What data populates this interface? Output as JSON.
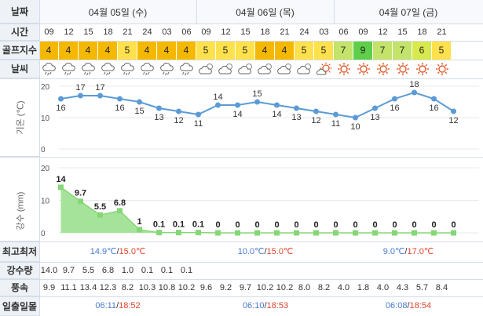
{
  "labels": {
    "date": "날짜",
    "time": "시간",
    "golf_index": "골프지수",
    "weather": "날씨",
    "temp_axis": "기온 (℃)",
    "rain_axis": "강수 (mm)",
    "minmax": "최고최저",
    "precip": "강수량",
    "wind": "풍속",
    "sun": "일출일몰"
  },
  "days": [
    {
      "label": "04월 05일 (수)",
      "min": "14.9℃",
      "max": "15.0℃",
      "sep": "/",
      "sunrise": "06:11",
      "sunset": "18:52"
    },
    {
      "label": "04월 06일 (목)",
      "min": "10.0℃",
      "max": "15.0℃",
      "sep": "/",
      "sunrise": "06:10",
      "sunset": "18:53"
    },
    {
      "label": "04월 07일 (금)",
      "min": "9.0℃",
      "max": "17.0℃",
      "sep": "/",
      "sunrise": "06:08",
      "sunset": "18:54"
    }
  ],
  "hours": [
    "09",
    "12",
    "15",
    "18",
    "21",
    "24",
    "03",
    "06",
    "09",
    "12",
    "15",
    "18",
    "21",
    "24",
    "03",
    "06",
    "09",
    "12",
    "15",
    "18",
    "21"
  ],
  "golf_scores": [
    "4",
    "4",
    "4",
    "4",
    "5",
    "4",
    "4",
    "4",
    "5",
    "5",
    "5",
    "4",
    "4",
    "5",
    "5",
    "7",
    "9",
    "7",
    "7",
    "6",
    "5"
  ],
  "weather_icons": [
    "rain-cloud-icon",
    "rain-cloud-icon",
    "rain-cloud-icon",
    "rain-cloud-icon",
    "rain-cloud-icon",
    "rain-cloud-icon",
    "rain-cloud-icon",
    "rain-cloud-icon",
    "partly-cloudy-icon",
    "partly-cloudy-icon",
    "partly-cloudy-icon",
    "partly-cloudy-icon",
    "partly-cloudy-icon",
    "partly-cloudy-icon",
    "sun-cloud-icon",
    "sun-icon",
    "sun-icon",
    "sun-icon",
    "sun-icon",
    "sun-icon",
    "sun-icon"
  ],
  "precip_row": [
    "14.0",
    "9.7",
    "5.5",
    "6.8",
    "1.0",
    "0.1",
    "0.1",
    "0.1",
    "",
    "",
    "",
    "",
    "",
    "",
    "",
    "",
    "",
    "",
    "",
    "",
    ""
  ],
  "wind_row": [
    "9.9",
    "11.1",
    "13.4",
    "12.3",
    "8.2",
    "10.3",
    "10.8",
    "10.2",
    "9.6",
    "9.2",
    "9.7",
    "10.2",
    "10.2",
    "8.0",
    "8.2",
    "4.0",
    "1.8",
    "4.0",
    "4.3",
    "5.7",
    "8.4"
  ],
  "colors": {
    "score_4": "#f5b800",
    "score_5": "#ffe14d",
    "score_6": "#d8e94d",
    "score_7": "#c4e36a",
    "score_9": "#5fcf4a",
    "temp_line": "#5b9bd5",
    "rain_fill": "#a6e39a",
    "rain_line": "#86d776"
  },
  "chart_data": [
    {
      "type": "line",
      "ylabel": "기온 (℃)",
      "ylim": [
        0,
        20
      ],
      "yticks": [
        "0",
        "10",
        "20"
      ],
      "x": [
        "09",
        "12",
        "15",
        "18",
        "21",
        "24",
        "03",
        "06",
        "09",
        "12",
        "15",
        "18",
        "21",
        "24",
        "03",
        "06",
        "09",
        "12",
        "15",
        "18",
        "21"
      ],
      "values": [
        16,
        17,
        17,
        16,
        15,
        13,
        12,
        11,
        14,
        14,
        15,
        14,
        13,
        12,
        11,
        10,
        13,
        16,
        18,
        16,
        12
      ],
      "grid": true
    },
    {
      "type": "area",
      "ylabel": "강수 (mm)",
      "ylim": [
        0,
        20
      ],
      "yticks": [
        "0",
        "10",
        "20"
      ],
      "x": [
        "09",
        "12",
        "15",
        "18",
        "21",
        "24",
        "03",
        "06",
        "09",
        "12",
        "15",
        "18",
        "21",
        "24",
        "03",
        "06",
        "09",
        "12",
        "15",
        "18",
        "21"
      ],
      "values": [
        14,
        9.7,
        5.5,
        6.8,
        1,
        0.1,
        0.1,
        0.1,
        0,
        0,
        0,
        0,
        0,
        0,
        0,
        0,
        0,
        0,
        0,
        0,
        0
      ],
      "labels": [
        "14",
        "9.7",
        "5.5",
        "6.8",
        "1",
        "0.1",
        "0.1",
        "0.1",
        "0",
        "0",
        "0",
        "0",
        "0",
        "0",
        "0",
        "0",
        "0",
        "0",
        "0",
        "0",
        "0"
      ],
      "grid": true
    }
  ]
}
